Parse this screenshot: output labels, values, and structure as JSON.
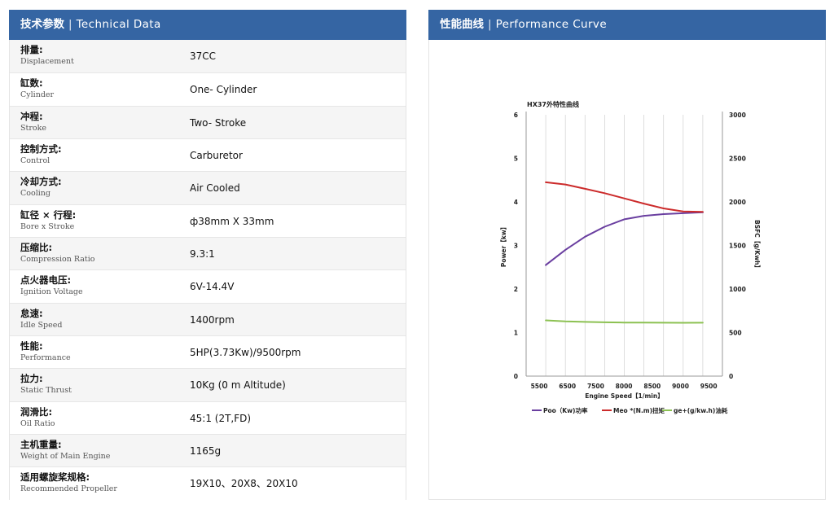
{
  "technical": {
    "title_zh": "技术参数",
    "separator": "|",
    "title_en": "Technical Data",
    "rows": [
      {
        "zh": "排量:",
        "en": "Displacement",
        "value": "37CC"
      },
      {
        "zh": "缸数:",
        "en": "Cylinder",
        "value": "One- Cylinder"
      },
      {
        "zh": "冲程:",
        "en": "Stroke",
        "value": "Two- Stroke"
      },
      {
        "zh": "控制方式:",
        "en": "Control",
        "value": "Carburetor"
      },
      {
        "zh": "冷却方式:",
        "en": "Cooling",
        "value": "Air Cooled"
      },
      {
        "zh": "缸径 × 行程:",
        "en": "Bore x Stroke",
        "value": "ф38mm X 33mm"
      },
      {
        "zh": "压缩比:",
        "en": "Compression Ratio",
        "value": "9.3:1"
      },
      {
        "zh": "点火器电压:",
        "en": "Ignition Voltage",
        "value": "6V-14.4V"
      },
      {
        "zh": "怠速:",
        "en": "Idle Speed",
        "value": "1400rpm"
      },
      {
        "zh": "性能:",
        "en": "Performance",
        "value": "5HP(3.73Kw)/9500rpm"
      },
      {
        "zh": "拉力:",
        "en": "Static Thrust",
        "value": "10Kg (0 m Altitude)"
      },
      {
        "zh": "润滑比:",
        "en": "Oil Ratio",
        "value": "45:1 (2T,FD)"
      },
      {
        "zh": "主机重量:",
        "en": "Weight of Main Engine",
        "value": "1165g"
      },
      {
        "zh": "适用螺旋桨规格:",
        "en": "Recommended Propeller",
        "value": "19X10、20X8、20X10"
      }
    ]
  },
  "performance": {
    "title_zh": "性能曲线",
    "separator": "|",
    "title_en": "Performance Curve"
  },
  "chart_data": {
    "type": "line",
    "title": "HX37外特性曲线",
    "xlabel": "Engine Speed【1/min】",
    "ylabel_left": "Power【kw】",
    "ylabel_right": "BSFC【g/Kwh】",
    "x": [
      5500,
      6500,
      7500,
      8500,
      9500
    ],
    "x_ticks": [
      "5500",
      "6500",
      "7500",
      "8000",
      "8500",
      "9000",
      "9500"
    ],
    "ylim_left": [
      0,
      6
    ],
    "yticks_left": [
      "0",
      "1",
      "2",
      "3",
      "4",
      "5",
      "6"
    ],
    "ylim_right": [
      0,
      3000
    ],
    "yticks_right": [
      "0",
      "500",
      "1000",
      "1500",
      "2000",
      "2500",
      "3000"
    ],
    "grid": true,
    "legend_position": "bottom",
    "series": [
      {
        "name": "Poo（Kw)功率",
        "color": "#6a3fa0",
        "axis": "left",
        "x": [
          5500,
          6000,
          6500,
          7000,
          7500,
          8000,
          8500,
          9000,
          9500
        ],
        "values": [
          2.55,
          2.9,
          3.2,
          3.43,
          3.6,
          3.68,
          3.72,
          3.74,
          3.76
        ]
      },
      {
        "name": "Meo *(N.m)扭矩",
        "color": "#cc2b2b",
        "axis": "left",
        "x": [
          5500,
          6000,
          6500,
          7000,
          7500,
          8000,
          8500,
          9000,
          9500
        ],
        "values": [
          4.45,
          4.4,
          4.3,
          4.2,
          4.08,
          3.96,
          3.85,
          3.78,
          3.77
        ]
      },
      {
        "name": "ge+(g/kw.h)油耗",
        "color": "#8cc152",
        "axis": "right",
        "x": [
          5500,
          6000,
          6500,
          7000,
          7500,
          8000,
          8500,
          9000,
          9500
        ],
        "values": [
          640,
          628,
          622,
          618,
          615,
          614,
          613,
          612,
          613
        ]
      }
    ]
  }
}
